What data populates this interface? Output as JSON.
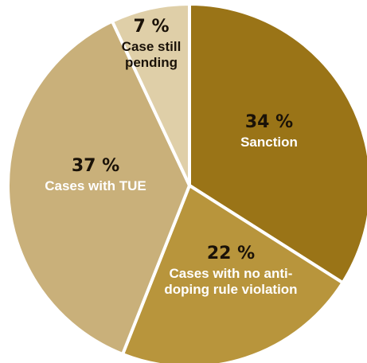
{
  "chart_data": {
    "type": "pie",
    "title": "",
    "start_angle_deg": 0,
    "direction": "clockwise",
    "slices": [
      {
        "percent_label": "34 %",
        "value": 34,
        "lines": [
          "Sanction"
        ],
        "color": "#9a7417",
        "text_color": "#ffffff"
      },
      {
        "percent_label": "22 %",
        "value": 22,
        "lines": [
          "Cases with no anti-",
          "doping rule violation"
        ],
        "color": "#b8953c",
        "text_color": "#ffffff"
      },
      {
        "percent_label": "37 %",
        "value": 37,
        "lines": [
          "Cases with TUE"
        ],
        "color": "#c9b07a",
        "text_color": "#ffffff"
      },
      {
        "percent_label": "7 %",
        "value": 7,
        "lines": [
          "Case still",
          "pending"
        ],
        "color": "#dfcfa8",
        "text_color": "#1a1208"
      }
    ],
    "separator_color": "#ffffff"
  }
}
